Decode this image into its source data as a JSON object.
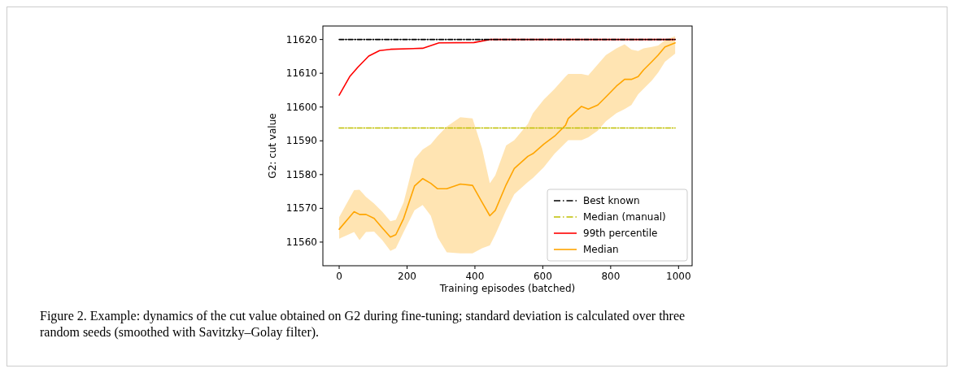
{
  "chart_data": {
    "type": "line",
    "xlabel": "Training episodes (batched)",
    "ylabel": "G2: cut value",
    "xlim": [
      -48,
      1040
    ],
    "ylim": [
      11553,
      11624
    ],
    "xticks": [
      0,
      200,
      400,
      600,
      800,
      1000
    ],
    "yticks": [
      11560,
      11570,
      11580,
      11590,
      11600,
      11610,
      11620
    ],
    "grid": false,
    "legend": "bottom right",
    "series": [
      {
        "name": "Best known",
        "color": "#000000",
        "line_style": "dashdot",
        "x": [
          0,
          990
        ],
        "values": [
          11620,
          11620
        ]
      },
      {
        "name": "Median (manual)",
        "color": "#bfbf00",
        "line_style": "dashdot",
        "x": [
          0,
          990
        ],
        "values": [
          11593.8,
          11593.8
        ]
      },
      {
        "name": "99th percentile",
        "color": "#ff0000",
        "line_style": "solid",
        "x": [
          0,
          31,
          55,
          87,
          119,
          151,
          246,
          294,
          397,
          444,
          990
        ],
        "values": [
          11603.5,
          11609,
          11611.8,
          11615.1,
          11616.7,
          11617.1,
          11617.4,
          11619,
          11619.1,
          11620,
          11620
        ]
      },
      {
        "name": "Median",
        "color": "#ffa500",
        "line_style": "solid",
        "x": [
          0,
          44,
          60,
          79,
          103,
          127,
          151,
          167,
          190,
          222,
          246,
          270,
          290,
          317,
          357,
          393,
          421,
          444,
          460,
          492,
          516,
          556,
          571,
          603,
          635,
          667,
          675,
          714,
          734,
          762,
          786,
          817,
          841,
          861,
          881,
          897,
          921,
          940,
          960,
          990
        ],
        "values": [
          11563.8,
          11569,
          11568.2,
          11568.2,
          11567,
          11564.2,
          11561.5,
          11562.2,
          11567,
          11576.6,
          11578.8,
          11577.4,
          11575.8,
          11575.8,
          11577.2,
          11576.8,
          11571.8,
          11567.8,
          11569.4,
          11577,
          11581.8,
          11585.4,
          11586.2,
          11589,
          11591.4,
          11594.6,
          11596.6,
          11600.2,
          11599.4,
          11600.6,
          11603,
          11606.2,
          11608.2,
          11608.2,
          11609,
          11611,
          11613.4,
          11615.4,
          11617.8,
          11619
        ],
        "upper": [
          11567.4,
          11575.4,
          11575.5,
          11573.4,
          11571.4,
          11569,
          11566.2,
          11566.6,
          11571.8,
          11584.6,
          11587.4,
          11589,
          11591.4,
          11594.2,
          11597,
          11596.6,
          11587.8,
          11577.4,
          11579.8,
          11588.6,
          11590.2,
          11595,
          11598.2,
          11602.2,
          11605.4,
          11609,
          11609.8,
          11609.8,
          11609.4,
          11612.6,
          11615.4,
          11617.4,
          11618.6,
          11617,
          11616.6,
          11617.4,
          11617.8,
          11618.2,
          11619.8,
          11621
        ],
        "lower": [
          11561,
          11563,
          11560.6,
          11563,
          11563.1,
          11560.6,
          11557.4,
          11558.2,
          11563,
          11569.4,
          11571,
          11567.8,
          11561.4,
          11557,
          11556.7,
          11556.7,
          11558.2,
          11559,
          11562.2,
          11569.4,
          11574.2,
          11577.8,
          11579,
          11582.2,
          11586.2,
          11589.4,
          11590.2,
          11590.2,
          11591,
          11593,
          11595.8,
          11598.2,
          11599.4,
          11600.6,
          11603.8,
          11605.4,
          11607.8,
          11610.2,
          11613.4,
          11615.8
        ]
      }
    ],
    "annotations": [
      "Figure 2. Example: dynamics of the cut value obtained on G2 during fine-tuning; standard deviation is calculated over three random seeds (smoothed with Savitzky–Golay filter)."
    ]
  }
}
